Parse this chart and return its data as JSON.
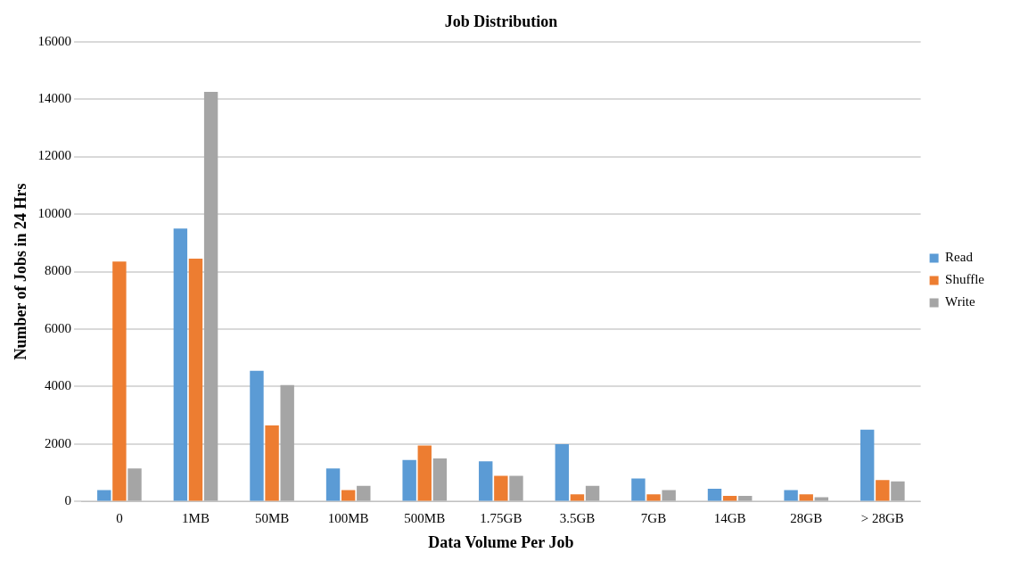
{
  "chart_data": {
    "type": "bar",
    "title": "Job Distribution",
    "xlabel": "Data Volume Per Job",
    "ylabel": "Number of Jobs in 24 Hrs",
    "categories": [
      "0",
      "1MB",
      "50MB",
      "100MB",
      "500MB",
      "1.75GB",
      "3.5GB",
      "7GB",
      "14GB",
      "28GB",
      "> 28GB"
    ],
    "series": [
      {
        "name": "Read",
        "color": "#5b9bd5",
        "values": [
          400,
          9500,
          4550,
          1150,
          1450,
          1400,
          2000,
          800,
          450,
          400,
          2500
        ]
      },
      {
        "name": "Shuffle",
        "color": "#ed7d31",
        "values": [
          8350,
          8450,
          2650,
          400,
          1950,
          900,
          250,
          250,
          200,
          250,
          750
        ]
      },
      {
        "name": "Write",
        "color": "#a5a5a5",
        "values": [
          1150,
          14250,
          4050,
          550,
          1500,
          900,
          550,
          400,
          200,
          150,
          700
        ]
      }
    ],
    "ylim": [
      0,
      16000
    ],
    "yticks": [
      0,
      2000,
      4000,
      6000,
      8000,
      10000,
      12000,
      14000,
      16000
    ],
    "grid": "y",
    "legend": "right"
  }
}
